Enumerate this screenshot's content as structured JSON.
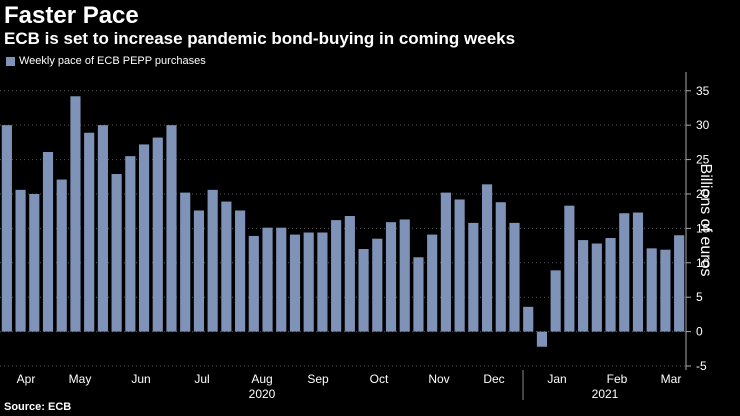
{
  "header": {
    "title": "Faster Pace",
    "subtitle": "ECB is set to increase pandemic bond-buying in coming weeks"
  },
  "footer": {
    "source": "Source: ECB"
  },
  "colors": {
    "bar": "#7f93b8",
    "background": "#000000",
    "grid": "#555555",
    "text": "#ffffff"
  },
  "chart_data": {
    "type": "bar",
    "title": "Faster Pace",
    "subtitle": "ECB is set to increase pandemic bond-buying in coming weeks",
    "ylabel": "Billions of euros",
    "ylim": [
      -5,
      37
    ],
    "yticks": [
      -5,
      0,
      5,
      10,
      15,
      20,
      25,
      30,
      35
    ],
    "y_axis_side": "right",
    "grid": true,
    "legend": {
      "placement": "top-left",
      "entries": [
        "Weekly pace of ECB PEPP purchases"
      ]
    },
    "x_month_labels": [
      "Apr",
      "May",
      "Jun",
      "Jul",
      "Aug",
      "Sep",
      "Oct",
      "Nov",
      "Dec",
      "Jan",
      "Feb",
      "Mar"
    ],
    "x_year_labels": [
      "2020",
      "2021"
    ],
    "series": [
      {
        "name": "Weekly pace of ECB PEPP purchases",
        "values": [
          30.0,
          20.6,
          20.0,
          26.1,
          22.1,
          34.2,
          28.9,
          30.0,
          22.9,
          25.5,
          27.2,
          28.2,
          30.0,
          20.2,
          17.6,
          20.6,
          18.9,
          17.6,
          13.9,
          15.1,
          15.1,
          14.1,
          14.4,
          14.4,
          16.2,
          16.8,
          12.0,
          13.5,
          15.9,
          16.3,
          10.8,
          14.1,
          20.2,
          19.2,
          15.8,
          21.4,
          18.8,
          15.8,
          3.6,
          -2.2,
          8.9,
          18.3,
          13.3,
          12.8,
          13.6,
          17.2,
          17.3,
          12.1,
          11.9,
          14.0
        ]
      }
    ]
  }
}
